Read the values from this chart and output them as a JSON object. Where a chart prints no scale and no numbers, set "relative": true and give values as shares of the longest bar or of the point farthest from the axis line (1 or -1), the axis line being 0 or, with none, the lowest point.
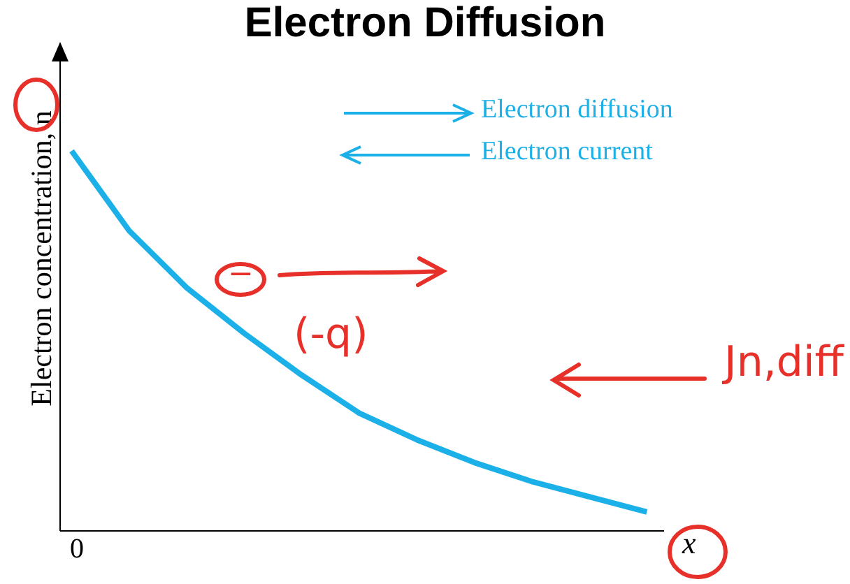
{
  "chart_data": {
    "type": "line",
    "title": "Electron Diffusion",
    "xlabel": "x",
    "ylabel": "Electron concentration, n",
    "relative": true,
    "marker": "none",
    "color": "#1cb0e8",
    "categories": [
      null,
      null,
      null,
      null,
      null,
      null,
      null,
      null,
      null,
      null,
      null
    ],
    "values": [
      1.0,
      0.79,
      0.64,
      0.52,
      0.41,
      0.31,
      0.24,
      0.18,
      0.13,
      0.09,
      0.05
    ],
    "annotations": [
      "0",
      "Electron diffusion",
      "Electron current",
      "−",
      "(-q)",
      "Jn,diff"
    ]
  }
}
